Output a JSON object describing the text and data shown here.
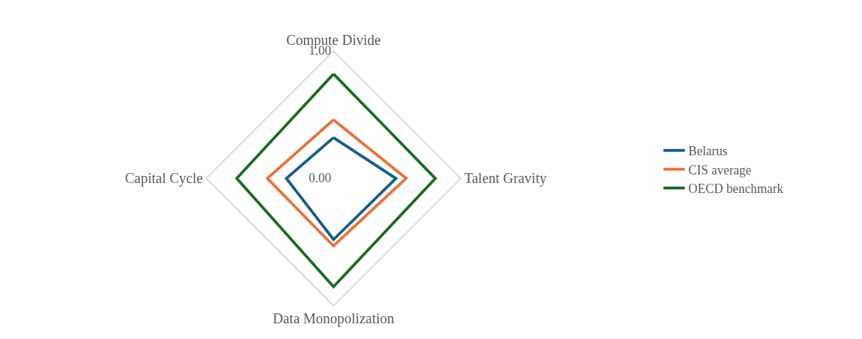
{
  "chart_data": {
    "type": "radar",
    "categories": [
      "Compute Divide",
      "Talent Gravity",
      "Data Monopolization",
      "Capital Cycle"
    ],
    "series": [
      {
        "name": "Belarus",
        "color": "#1b5e86",
        "values": [
          0.32,
          0.49,
          0.48,
          0.37
        ]
      },
      {
        "name": "CIS average",
        "color": "#e8733a",
        "values": [
          0.46,
          0.57,
          0.53,
          0.52
        ]
      },
      {
        "name": "OECD benchmark",
        "color": "#1e6b2a",
        "values": [
          0.82,
          0.8,
          0.85,
          0.76
        ]
      }
    ],
    "ylim": [
      0,
      1
    ],
    "yticks": [
      {
        "value": 0,
        "label": "0.00"
      },
      {
        "value": 1,
        "label": "1.00"
      }
    ],
    "grid": true,
    "legend": "right",
    "marker": "none",
    "line_style": "solid"
  }
}
